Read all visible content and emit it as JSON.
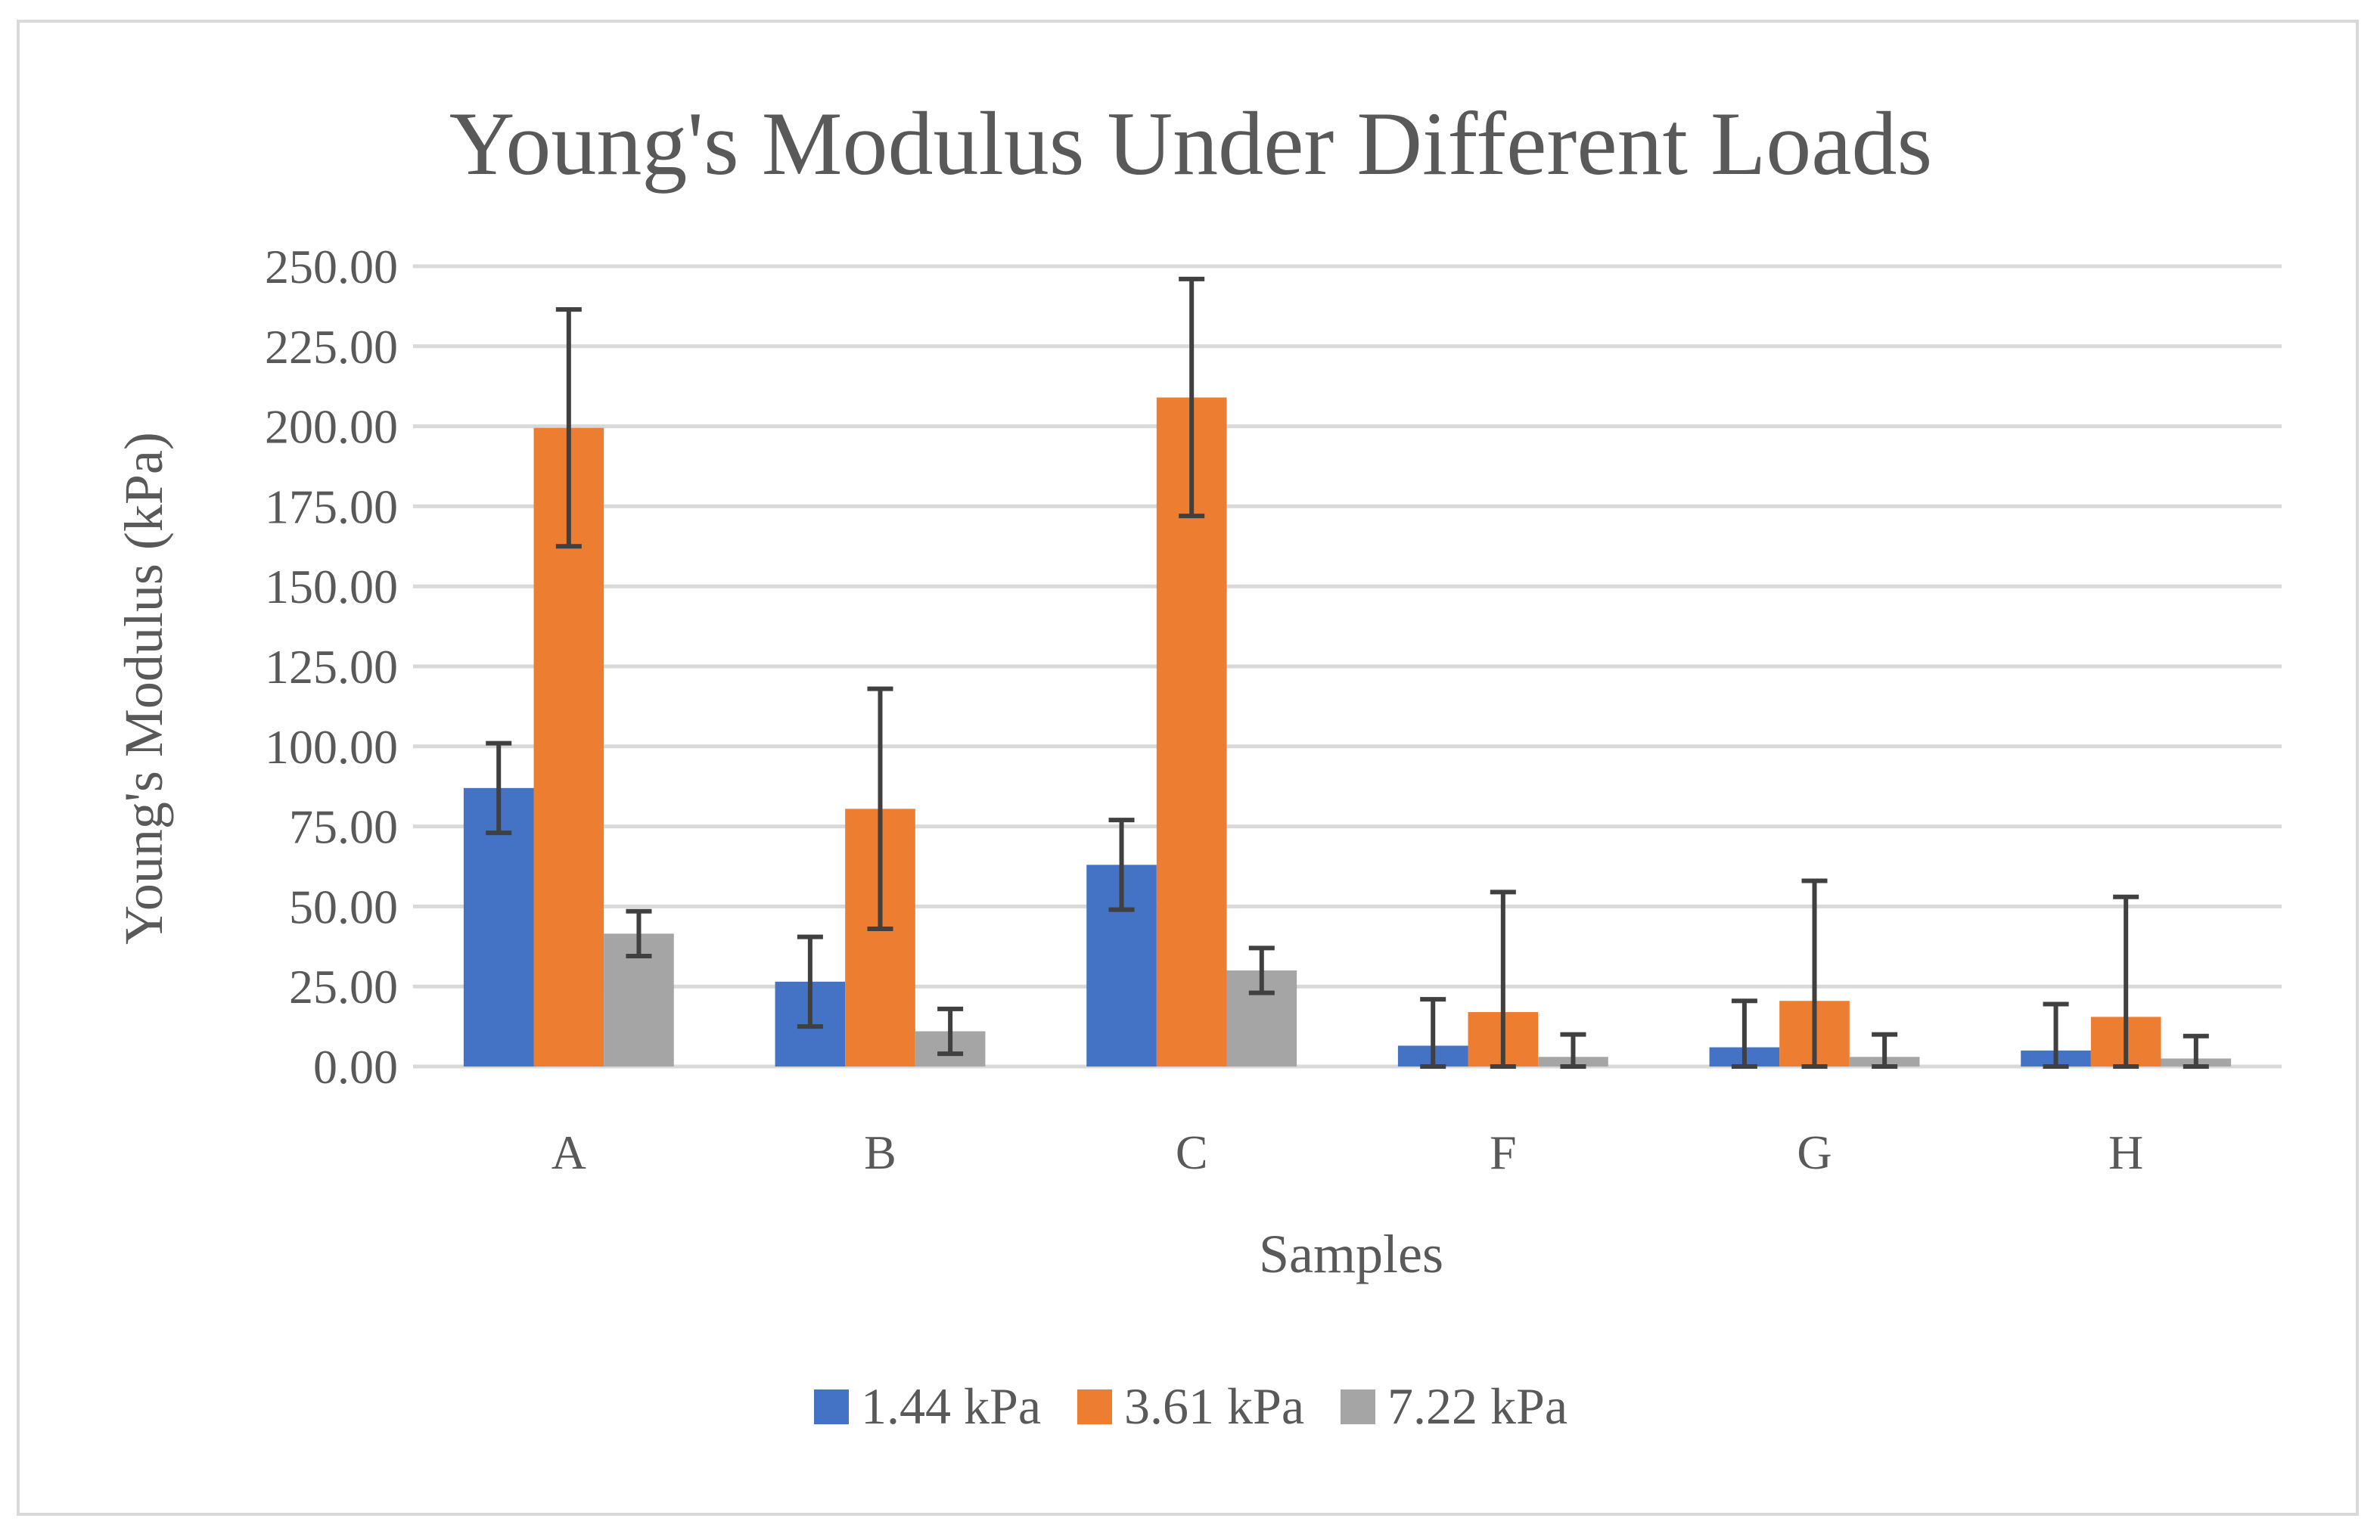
{
  "chart_data": {
    "type": "bar",
    "title": "Young's Modulus Under Different Loads",
    "xlabel": "Samples",
    "ylabel": "Young's Modulus (kPa)",
    "categories": [
      "A",
      "B",
      "C",
      "F",
      "G",
      "H"
    ],
    "ylim": [
      0,
      250
    ],
    "ytick_step": 25,
    "ytick_labels": [
      "0.00",
      "25.00",
      "50.00",
      "75.00",
      "100.00",
      "125.00",
      "150.00",
      "175.00",
      "200.00",
      "225.00",
      "250.00"
    ],
    "grid": true,
    "legend_position": "bottom",
    "series": [
      {
        "name": "1.44 kPa",
        "color": "#4472c4",
        "values": [
          87.0,
          26.5,
          63.0,
          6.5,
          6.0,
          5.0
        ],
        "errors": [
          14.0,
          14.0,
          14.0,
          14.5,
          14.5,
          14.5
        ]
      },
      {
        "name": "3.61 kPa",
        "color": "#ed7d31",
        "values": [
          199.5,
          80.5,
          209.0,
          17.0,
          20.5,
          15.5
        ],
        "errors": [
          37.0,
          37.5,
          37.0,
          37.5,
          37.5,
          37.5
        ]
      },
      {
        "name": "7.22 kPa",
        "color": "#a5a5a5",
        "values": [
          41.5,
          11.0,
          30.0,
          3.0,
          3.0,
          2.5
        ],
        "errors": [
          7.0,
          7.0,
          7.0,
          7.0,
          7.0,
          7.0
        ]
      }
    ],
    "colors": {
      "gridline": "#d9d9d9",
      "error_bar": "#404040",
      "text": "#595959"
    }
  }
}
